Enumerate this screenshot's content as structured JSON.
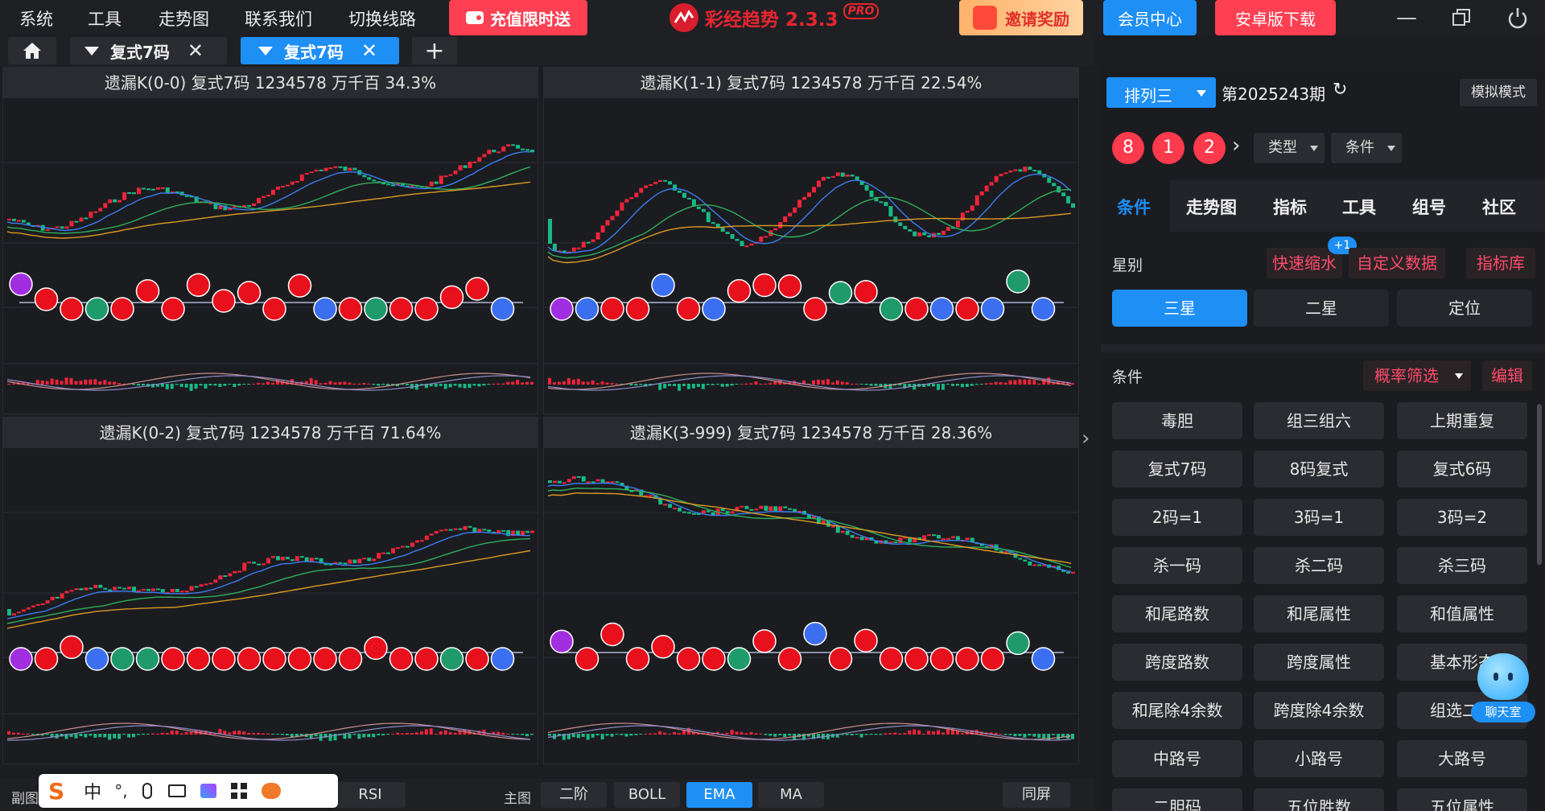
{
  "menu": [
    "系统",
    "工具",
    "走势图",
    "联系我们",
    "切换线路"
  ],
  "promo_recharge": "充值限时送",
  "app_title": "彩经趋势 2.3.3",
  "app_badge": "PRO",
  "invite": "邀请奖励",
  "member": "会员中心",
  "android": "安卓版下载",
  "tabs": [
    {
      "label": "复式7码"
    },
    {
      "label": "复式7码"
    }
  ],
  "panels": [
    {
      "title": "遗漏K(0-0)  复式7码  1234578  万千百  34.3%"
    },
    {
      "title": "遗漏K(1-1)  复式7码  1234578  万千百  22.54%"
    },
    {
      "title": "遗漏K(0-2)  复式7码  1234578  万千百  71.64%"
    },
    {
      "title": "遗漏K(3-999)  复式7码  1234578  万千百  28.36%"
    }
  ],
  "bottom": {
    "sub_label": "副图",
    "rsi": "RSI",
    "main_label": "主图",
    "btn_erjie": "二阶",
    "btn_boll": "BOLL",
    "btn_ema": "EMA",
    "btn_ma": "MA",
    "btn_tongping": "同屏"
  },
  "ime": {
    "zh": "中",
    "dot": "°,"
  },
  "right": {
    "lottery": "排列三",
    "period": "第2025243期",
    "simulate": "模拟模式",
    "balls": [
      "8",
      "1",
      "2"
    ],
    "type_label": "类型",
    "cond_label": "条件",
    "nav": [
      "条件",
      "走势图",
      "指标",
      "工具",
      "组号",
      "社区"
    ],
    "star_label": "星别",
    "quick_zoom": "快速缩水",
    "quick_badge": "+1",
    "custom_data": "自定义数据",
    "indicator_lib": "指标库",
    "stars": [
      "三星",
      "二星",
      "定位"
    ],
    "cond_title": "条件",
    "prob_filter": "概率筛选",
    "edit": "编辑",
    "grid": [
      "毒胆",
      "组三组六",
      "上期重复",
      "复式7码",
      "8码复式",
      "复式6码",
      "2码=1",
      "3码=1",
      "3码=2",
      "杀一码",
      "杀二码",
      "杀三码",
      "和尾路数",
      "和尾属性",
      "和值属性",
      "跨度路数",
      "跨度属性",
      "基本形态",
      "和尾除4余数",
      "跨度除4余数",
      "组选二码",
      "中路号",
      "小路号",
      "大路号"
    ],
    "row9_partial": [
      "二胆码",
      "五位胜数",
      "五位属性"
    ],
    "chat": "聊天室"
  },
  "colors": {
    "red": "#e8101c",
    "blue": "#3b6ff0",
    "purple": "#a12ee0",
    "green": "#1f9a6a",
    "accent": "#1e90ff",
    "promo_red": "#ff3f52"
  }
}
